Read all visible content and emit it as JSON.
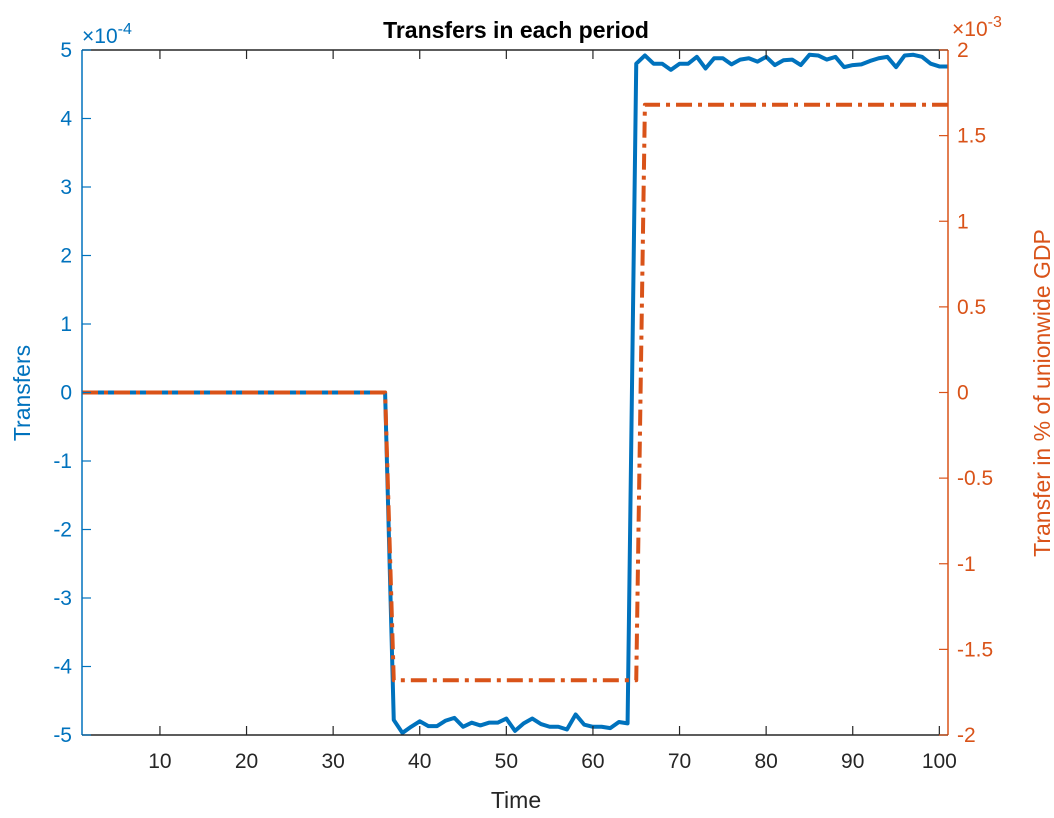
{
  "chart_data": {
    "type": "line",
    "title": "Transfers in each period",
    "xlabel": "Time",
    "ylabel_left": "Transfers",
    "ylabel_right": "Transfer in % of unionwide GDP",
    "xlim": [
      1,
      101
    ],
    "ylim_left": [
      -5,
      5
    ],
    "ylim_right": [
      -2,
      2
    ],
    "left_exponent_prefix": "×10",
    "left_exponent_power": "-4",
    "right_exponent_prefix": "×10",
    "right_exponent_power": "-3",
    "x_ticks": [
      "10",
      "20",
      "30",
      "40",
      "50",
      "60",
      "70",
      "80",
      "90",
      "100"
    ],
    "y_ticks_left": [
      "5",
      "4",
      "3",
      "2",
      "1",
      "0",
      "-1",
      "-2",
      "-3",
      "-4",
      "-5"
    ],
    "y_ticks_right": [
      "2",
      "1.5",
      "1",
      "0.5",
      "0",
      "-0.5",
      "-1",
      "-1.5",
      "-2"
    ],
    "grid": false,
    "colors": {
      "left": "#0072BD",
      "right": "#D95319",
      "text": "#262626"
    },
    "series": [
      {
        "axis": "left",
        "style": "solid",
        "x": [
          1,
          36,
          37,
          38,
          39,
          40,
          41,
          42,
          43,
          44,
          45,
          46,
          47,
          48,
          49,
          50,
          51,
          52,
          53,
          54,
          55,
          56,
          57,
          58,
          59,
          60,
          61,
          62,
          63,
          64,
          65,
          66,
          67,
          68,
          69,
          70,
          71,
          72,
          73,
          74,
          75,
          76,
          77,
          78,
          79,
          80,
          81,
          82,
          83,
          84,
          85,
          86,
          87,
          88,
          89,
          90,
          91,
          92,
          93,
          94,
          95,
          96,
          97,
          98,
          99,
          100,
          101
        ],
        "y": [
          0,
          0,
          -4.78,
          -4.97,
          -4.88,
          -4.8,
          -4.87,
          -4.87,
          -4.79,
          -4.75,
          -4.88,
          -4.82,
          -4.86,
          -4.82,
          -4.82,
          -4.76,
          -4.94,
          -4.83,
          -4.76,
          -4.84,
          -4.88,
          -4.88,
          -4.92,
          -4.7,
          -4.85,
          -4.88,
          -4.88,
          -4.9,
          -4.81,
          -4.83,
          4.8,
          4.92,
          4.8,
          4.8,
          4.71,
          4.8,
          4.8,
          4.9,
          4.73,
          4.88,
          4.88,
          4.79,
          4.86,
          4.88,
          4.83,
          4.9,
          4.78,
          4.85,
          4.86,
          4.78,
          4.93,
          4.92,
          4.86,
          4.9,
          4.75,
          4.78,
          4.79,
          4.84,
          4.88,
          4.9,
          4.75,
          4.92,
          4.93,
          4.9,
          4.8,
          4.76,
          4.76
        ]
      },
      {
        "axis": "right",
        "style": "dashdot",
        "x": [
          1,
          36,
          37,
          65,
          66,
          101
        ],
        "y": [
          0,
          0,
          -1.68,
          -1.68,
          1.68,
          1.68
        ]
      }
    ]
  }
}
